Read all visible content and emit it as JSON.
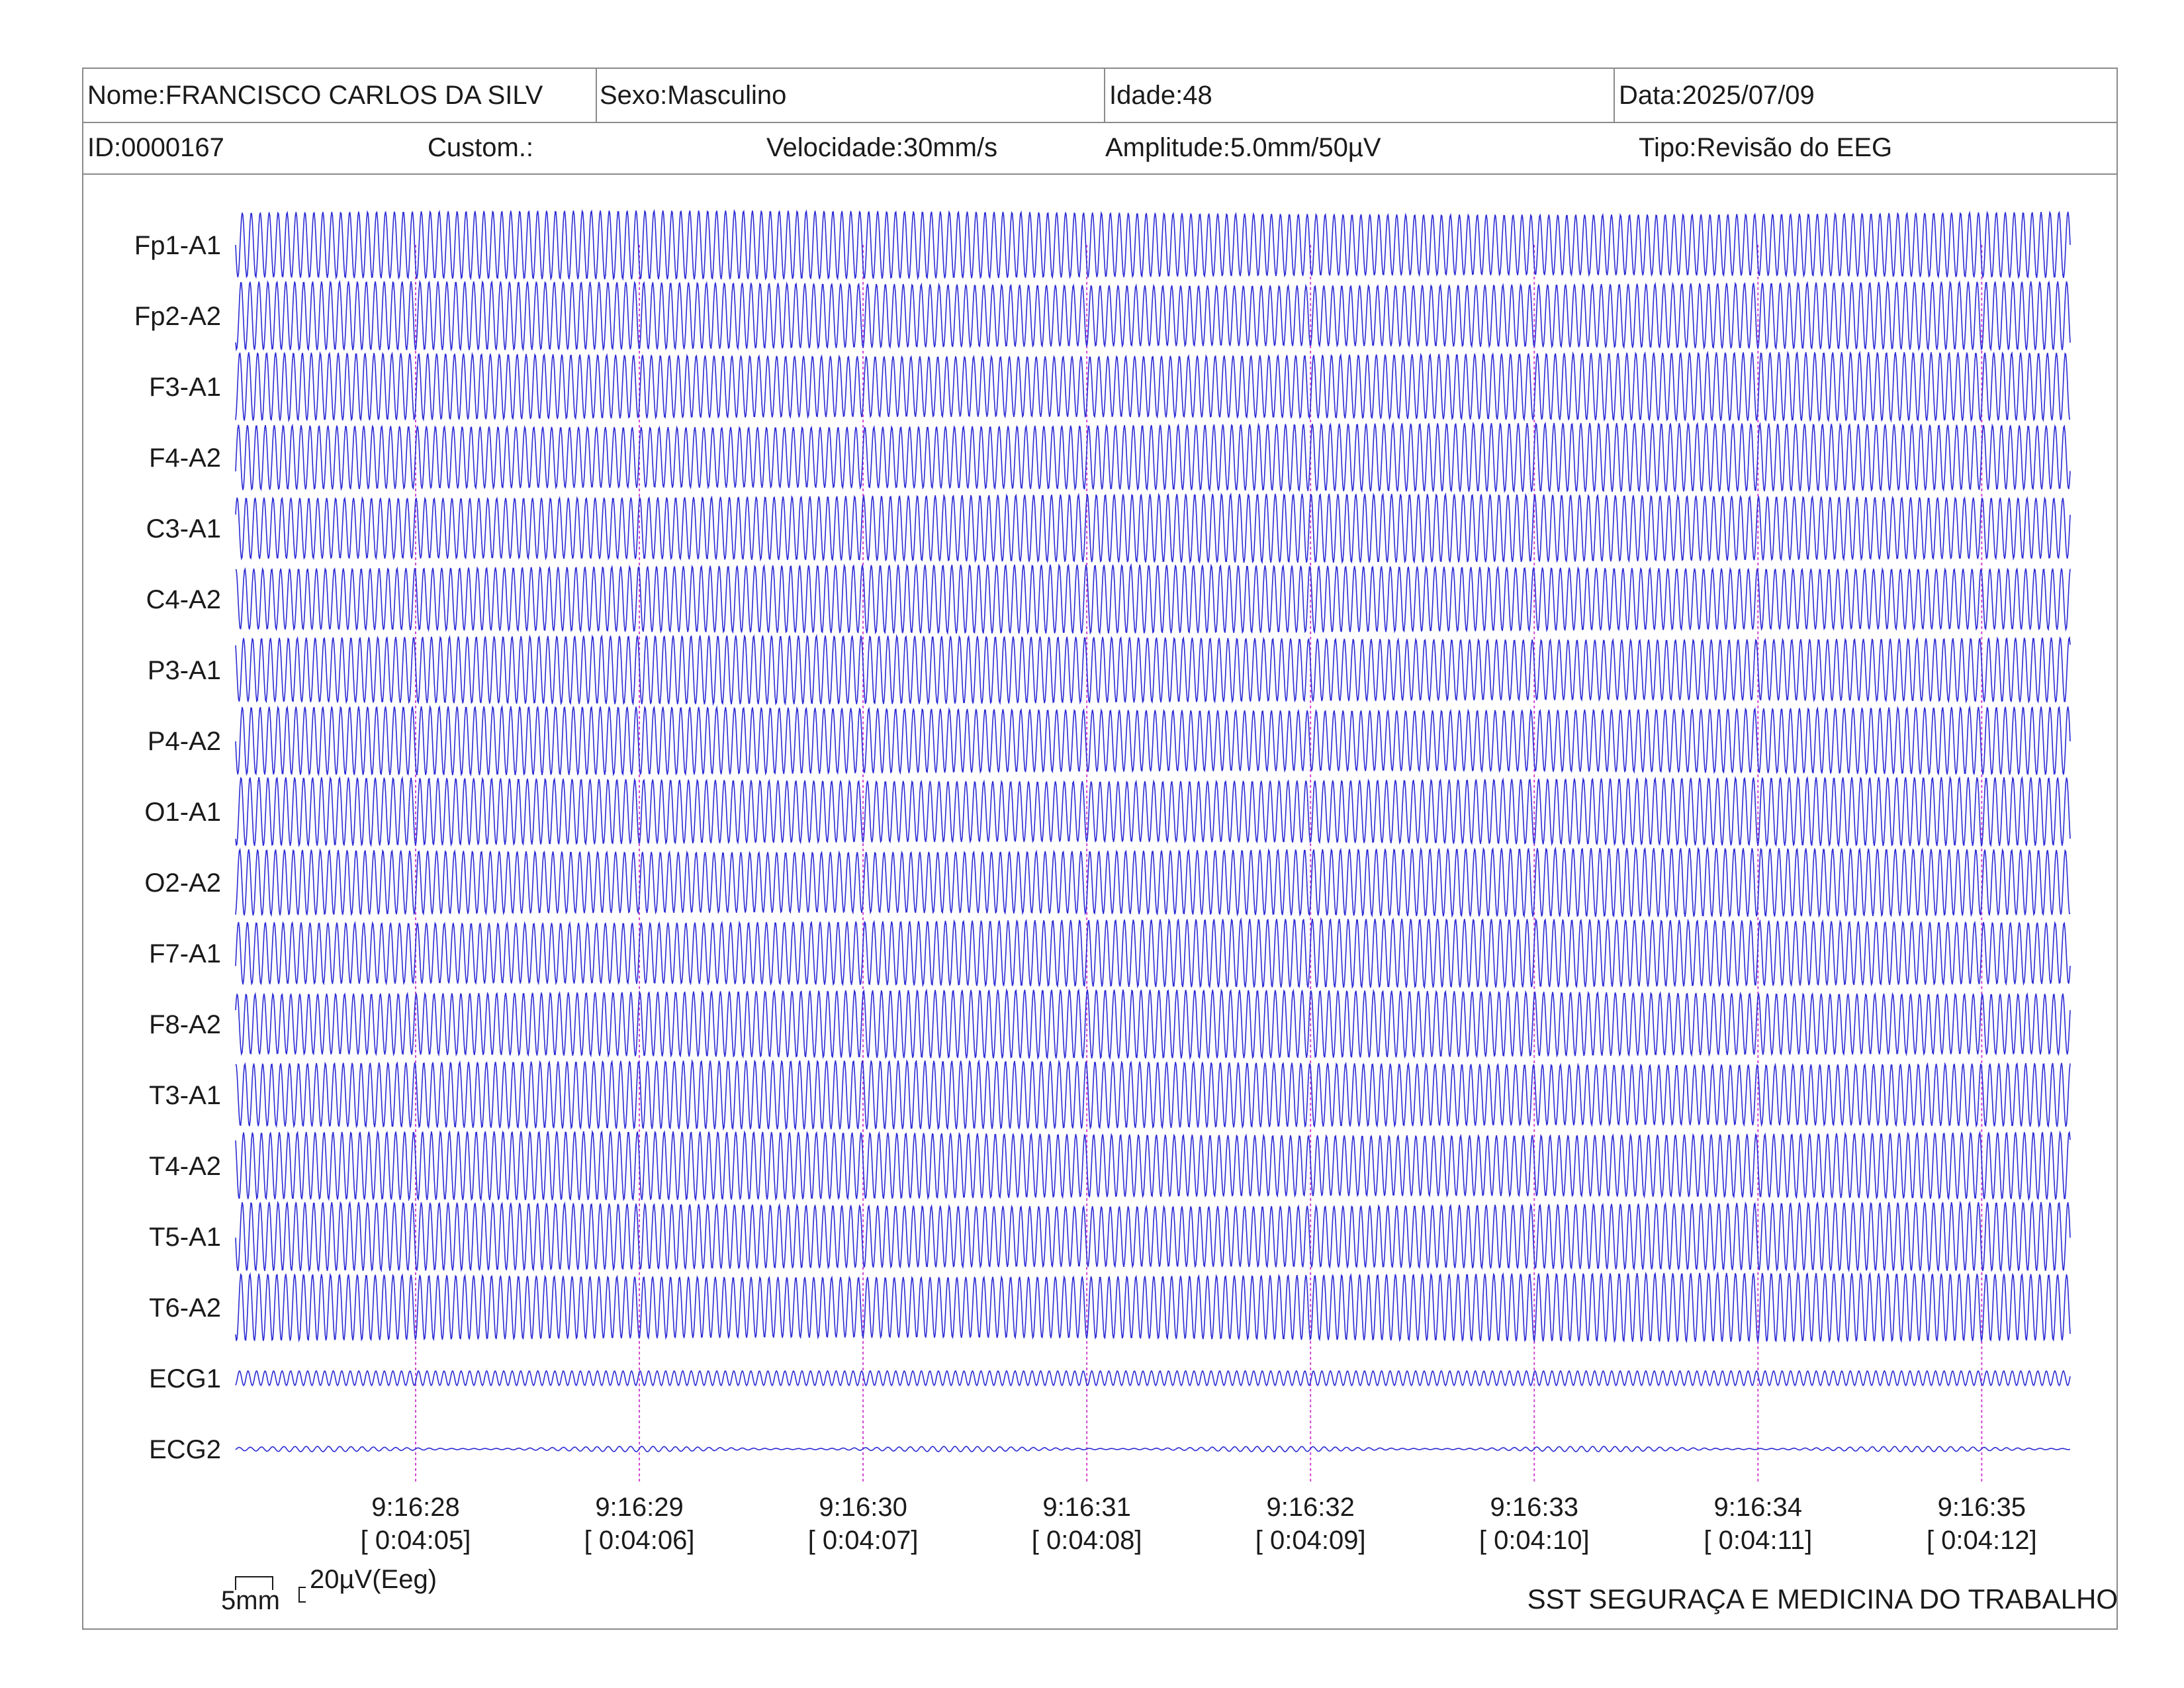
{
  "header": {
    "name": "Nome:FRANCISCO CARLOS DA SILV",
    "sex": "Sexo:Masculino",
    "age": "Idade:48",
    "date": "Data:2025/07/09",
    "id": "ID:0000167",
    "custom": "Custom.:",
    "speed": "Velocidade:30mm/s",
    "amplitude": "Amplitude:5.0mm/50µV",
    "type": "Tipo:Revisão do EEG"
  },
  "scale": {
    "time_label": "5mm",
    "amp_label": "20µV(Eeg)"
  },
  "company": "SST SEGURAÇA E MEDICINA DO TRABALHO",
  "colors": {
    "trace": "#2a2ad4",
    "marker": "#d246d2",
    "border": "#8a8a8a"
  },
  "chart_data": {
    "type": "line",
    "title": "",
    "xlabel": "",
    "ylabel": "",
    "channels": [
      "Fp1-A1",
      "Fp2-A2",
      "F3-A1",
      "F4-A2",
      "C3-A1",
      "C4-A2",
      "P3-A1",
      "P4-A2",
      "O1-A1",
      "O2-A2",
      "F7-A1",
      "F8-A2",
      "T3-A1",
      "T4-A2",
      "T5-A1",
      "T6-A2",
      "ECG1",
      "ECG2"
    ],
    "time_markers": [
      {
        "clock": "9:16:28",
        "elapsed": "[ 0:04:05]"
      },
      {
        "clock": "9:16:29",
        "elapsed": "[ 0:04:06]"
      },
      {
        "clock": "9:16:30",
        "elapsed": "[ 0:04:07]"
      },
      {
        "clock": "9:16:31",
        "elapsed": "[ 0:04:08]"
      },
      {
        "clock": "9:16:32",
        "elapsed": "[ 0:04:09]"
      },
      {
        "clock": "9:16:33",
        "elapsed": "[ 0:04:10]"
      },
      {
        "clock": "9:16:34",
        "elapsed": "[ 0:04:11]"
      },
      {
        "clock": "9:16:35",
        "elapsed": "[ 0:04:12]"
      }
    ],
    "duration_s": 8.2,
    "eeg_waveform": {
      "shape": "sinusoidal",
      "cycles_per_second": 25,
      "peak_to_peak_uV": 100
    },
    "ecg_waveform": {
      "shape": "low amplitude oscillation"
    },
    "grid": false
  }
}
